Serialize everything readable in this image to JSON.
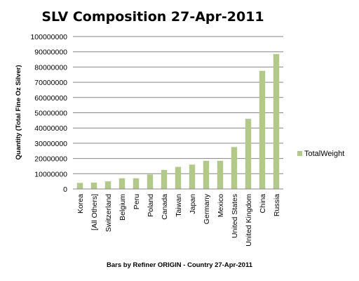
{
  "chart_data": {
    "type": "bar",
    "title": "SLV Composition 27-Apr-2011",
    "xlabel": "Bars by Refiner ORIGIN  - Country 27-Apr-2011",
    "ylabel": "Quantity (Total Fine Oz Silver)",
    "ylim": [
      0,
      100000000
    ],
    "yticks": [
      "0",
      "10000000",
      "20000000",
      "30000000",
      "40000000",
      "50000000",
      "60000000",
      "70000000",
      "80000000",
      "90000000",
      "100000000"
    ],
    "grid": true,
    "legend_position": "right",
    "categories": [
      "Korea",
      "[All Others]",
      "Switzerland",
      "Belgium",
      "Peru",
      "Poland",
      "Canada",
      "Taiwan",
      "Japan",
      "Germany",
      "Mexico",
      "United States",
      "United Kingdom",
      "China",
      "Russia"
    ],
    "series": [
      {
        "name": "TotalWeight",
        "color": "#b3c98a",
        "values": [
          4000000,
          4200000,
          5000000,
          7000000,
          7000000,
          9500000,
          12500000,
          14500000,
          16000000,
          18500000,
          18500000,
          27500000,
          46000000,
          77500000,
          88500000
        ]
      }
    ]
  }
}
